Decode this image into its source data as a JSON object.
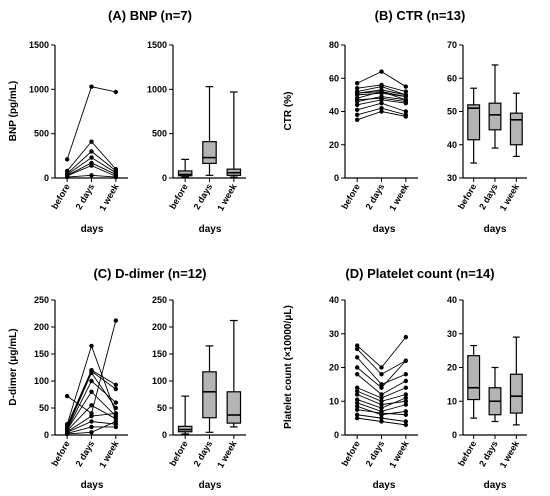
{
  "figure": {
    "panels": [
      {
        "title": "(A) BNP (n=7)",
        "ylabel": "BNP (pg/mL)",
        "xlabel": "days"
      },
      {
        "title": "(B) CTR (n=13)",
        "ylabel": "CTR (%)",
        "xlabel": "days"
      },
      {
        "title": "(C) D-dimer (n=12)",
        "ylabel": "D-dimer (μg/mL)",
        "xlabel": "days"
      },
      {
        "title": "(D) Platelet count (n=14)",
        "ylabel": "Platelet count (×10000/μL)",
        "xlabel": "days"
      }
    ]
  },
  "chart_data": [
    {
      "type": "line",
      "title": "(A) BNP (n=7)",
      "ylabel": "BNP (pg/mL)",
      "xlabel": "days",
      "categories": [
        "before",
        "2 days",
        "1 week"
      ],
      "ylim": [
        0,
        1500
      ],
      "yticks": [
        0,
        500,
        1000,
        1500
      ],
      "series": [
        {
          "values": [
            210,
            1030,
            970
          ]
        },
        {
          "values": [
            80,
            410,
            100
          ]
        },
        {
          "values": [
            50,
            300,
            80
          ]
        },
        {
          "values": [
            40,
            230,
            60
          ]
        },
        {
          "values": [
            30,
            170,
            40
          ]
        },
        {
          "values": [
            25,
            140,
            20
          ]
        },
        {
          "values": [
            10,
            30,
            10
          ]
        }
      ]
    },
    {
      "type": "box",
      "title": "(A) BNP (n=7)",
      "xlabel": "days",
      "categories": [
        "before",
        "2 days",
        "1 week"
      ],
      "ylim": [
        0,
        1500
      ],
      "yticks": [
        0,
        500,
        1000,
        1500
      ],
      "boxes": [
        {
          "min": 10,
          "q1": 25,
          "median": 40,
          "q3": 80,
          "max": 210
        },
        {
          "min": 30,
          "q1": 165,
          "median": 230,
          "q3": 410,
          "max": 1030
        },
        {
          "min": 10,
          "q1": 30,
          "median": 60,
          "q3": 100,
          "max": 970
        }
      ]
    },
    {
      "type": "line",
      "title": "(B) CTR (n=13)",
      "ylabel": "CTR (%)",
      "xlabel": "days",
      "categories": [
        "before",
        "2 days",
        "1 week"
      ],
      "ylim": [
        0,
        80
      ],
      "yticks": [
        0,
        20,
        40,
        60,
        80
      ],
      "series": [
        {
          "values": [
            57,
            64,
            55
          ]
        },
        {
          "values": [
            54,
            56,
            52
          ]
        },
        {
          "values": [
            52,
            55,
            50
          ]
        },
        {
          "values": [
            51,
            53,
            50
          ]
        },
        {
          "values": [
            51,
            52,
            49
          ]
        },
        {
          "values": [
            50,
            51,
            49
          ]
        },
        {
          "values": [
            48,
            52,
            47
          ]
        },
        {
          "values": [
            47,
            48,
            46
          ]
        },
        {
          "values": [
            46,
            49,
            47
          ]
        },
        {
          "values": [
            44,
            47,
            45
          ]
        },
        {
          "values": [
            41,
            45,
            40
          ]
        },
        {
          "values": [
            38,
            42,
            38
          ]
        },
        {
          "values": [
            35,
            40,
            37
          ]
        }
      ]
    },
    {
      "type": "box",
      "title": "(B) CTR (n=13)",
      "xlabel": "days",
      "categories": [
        "before",
        "2 days",
        "1 week"
      ],
      "ylim": [
        30,
        70
      ],
      "yticks": [
        30,
        40,
        50,
        60,
        70
      ],
      "boxes": [
        {
          "min": 34.5,
          "q1": 41.5,
          "median": 51,
          "q3": 52,
          "max": 57
        },
        {
          "min": 39,
          "q1": 44.5,
          "median": 49,
          "q3": 52.5,
          "max": 64
        },
        {
          "min": 36.5,
          "q1": 40,
          "median": 47.5,
          "q3": 49.5,
          "max": 55.5
        }
      ]
    },
    {
      "type": "line",
      "title": "(C) D-dimer (n=12)",
      "ylabel": "D-dimer (μg/mL)",
      "xlabel": "days",
      "categories": [
        "before",
        "2 days",
        "1 week"
      ],
      "ylim": [
        0,
        250
      ],
      "yticks": [
        0,
        50,
        100,
        150,
        200,
        250
      ],
      "series": [
        {
          "values": [
            72,
            40,
            212
          ]
        },
        {
          "values": [
            20,
            165,
            40
          ]
        },
        {
          "values": [
            18,
            120,
            93
          ]
        },
        {
          "values": [
            15,
            118,
            85
          ]
        },
        {
          "values": [
            12,
            115,
            50
          ]
        },
        {
          "values": [
            10,
            100,
            60
          ]
        },
        {
          "values": [
            10,
            80,
            35
          ]
        },
        {
          "values": [
            8,
            55,
            30
          ]
        },
        {
          "values": [
            6,
            35,
            40
          ]
        },
        {
          "values": [
            5,
            25,
            20
          ]
        },
        {
          "values": [
            3,
            15,
            15
          ]
        },
        {
          "values": [
            2,
            5,
            25
          ]
        }
      ]
    },
    {
      "type": "box",
      "title": "(C) D-dimer (n=12)",
      "xlabel": "days",
      "categories": [
        "before",
        "2 days",
        "1 week"
      ],
      "ylim": [
        0,
        250
      ],
      "yticks": [
        0,
        50,
        100,
        150,
        200,
        250
      ],
      "boxes": [
        {
          "min": 2,
          "q1": 6,
          "median": 10,
          "q3": 16,
          "max": 72
        },
        {
          "min": 5,
          "q1": 32,
          "median": 80,
          "q3": 117,
          "max": 165
        },
        {
          "min": 15,
          "q1": 22,
          "median": 37,
          "q3": 80,
          "max": 212
        }
      ]
    },
    {
      "type": "line",
      "title": "(D) Platelet count (n=14)",
      "ylabel": "Platelet count (×10000/μL)",
      "xlabel": "days",
      "categories": [
        "before",
        "2 days",
        "1 week"
      ],
      "ylim": [
        0,
        40
      ],
      "yticks": [
        0,
        10,
        20,
        30,
        40
      ],
      "series": [
        {
          "values": [
            26.5,
            20,
            29
          ]
        },
        {
          "values": [
            25.5,
            18,
            22
          ]
        },
        {
          "values": [
            23,
            15,
            18
          ]
        },
        {
          "values": [
            20,
            14,
            22
          ]
        },
        {
          "values": [
            18,
            12,
            16
          ]
        },
        {
          "values": [
            14,
            11,
            14
          ]
        },
        {
          "values": [
            13,
            10,
            12
          ]
        },
        {
          "values": [
            12,
            9,
            10
          ]
        },
        {
          "values": [
            10.5,
            8,
            11
          ]
        },
        {
          "values": [
            9.5,
            7,
            9
          ]
        },
        {
          "values": [
            8.5,
            6,
            7
          ]
        },
        {
          "values": [
            7.5,
            6.5,
            6
          ]
        },
        {
          "values": [
            6,
            5,
            4
          ]
        },
        {
          "values": [
            5,
            4,
            3
          ]
        }
      ]
    },
    {
      "type": "box",
      "title": "(D) Platelet count (n=14)",
      "xlabel": "days",
      "categories": [
        "before",
        "2 days",
        "1 week"
      ],
      "ylim": [
        0,
        40
      ],
      "yticks": [
        0,
        10,
        20,
        30,
        40
      ],
      "boxes": [
        {
          "min": 5,
          "q1": 10.5,
          "median": 14,
          "q3": 23.5,
          "max": 26.5
        },
        {
          "min": 4,
          "q1": 6,
          "median": 10,
          "q3": 14,
          "max": 20
        },
        {
          "min": 3,
          "q1": 6.5,
          "median": 11.5,
          "q3": 18,
          "max": 29
        }
      ]
    }
  ]
}
